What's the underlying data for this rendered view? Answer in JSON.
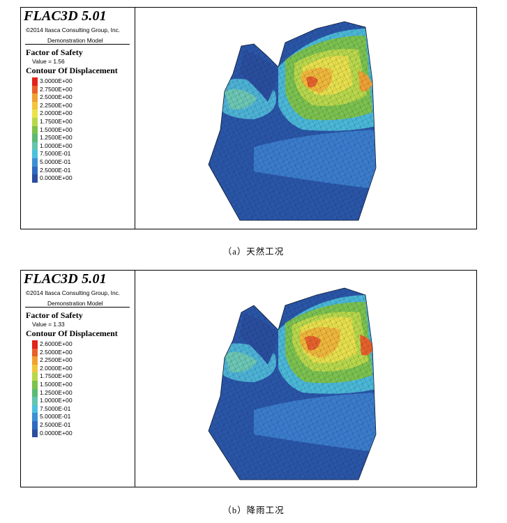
{
  "panels": [
    {
      "program": "FLAC3D 5.01",
      "copyright": "©2014 Itasca Consulting Group, Inc.",
      "model": "Demonstration Model",
      "factor_title": "Factor of Safety",
      "factor_value": "Value = 1.56",
      "contour_title": "Contour Of Displacement",
      "scale": [
        {
          "label": "3.0000E+00",
          "color": "#e2231a"
        },
        {
          "label": "2.7500E+00",
          "color": "#e8612a"
        },
        {
          "label": "2.5000E+00",
          "color": "#efa132"
        },
        {
          "label": "2.2500E+00",
          "color": "#f2c53d"
        },
        {
          "label": "2.0000E+00",
          "color": "#e9e34a"
        },
        {
          "label": "1.7500E+00",
          "color": "#b8d84a"
        },
        {
          "label": "1.5000E+00",
          "color": "#7dc24d"
        },
        {
          "label": "1.2500E+00",
          "color": "#5cba74"
        },
        {
          "label": "1.0000E+00",
          "color": "#63c5b1"
        },
        {
          "label": "7.5000E-01",
          "color": "#4dc0de"
        },
        {
          "label": "5.0000E-01",
          "color": "#3d8fd4"
        },
        {
          "label": "2.5000E-01",
          "color": "#2e6bc0"
        },
        {
          "label": "0.0000E+00",
          "color": "#2a4e9e"
        }
      ],
      "caption": "（a）天然工况"
    },
    {
      "program": "FLAC3D 5.01",
      "copyright": "©2014 Itasca Consulting Group, Inc.",
      "model": "Demonstration Model",
      "factor_title": "Factor of Safety",
      "factor_value": "Value = 1.33",
      "contour_title": "Contour Of Displacement",
      "scale": [
        {
          "label": "2.6000E+00",
          "color": "#e2231a"
        },
        {
          "label": "2.5000E+00",
          "color": "#e8612a"
        },
        {
          "label": "2.2500E+00",
          "color": "#efa132"
        },
        {
          "label": "2.0000E+00",
          "color": "#f2c53d"
        },
        {
          "label": "1.7500E+00",
          "color": "#b8d84a"
        },
        {
          "label": "1.5000E+00",
          "color": "#7dc24d"
        },
        {
          "label": "1.2500E+00",
          "color": "#5cba74"
        },
        {
          "label": "1.0000E+00",
          "color": "#63c5b1"
        },
        {
          "label": "7.5000E-01",
          "color": "#4dc0de"
        },
        {
          "label": "5.0000E-01",
          "color": "#3d8fd4"
        },
        {
          "label": "2.5000E-01",
          "color": "#2e6bc0"
        },
        {
          "label": "0.0000E+00",
          "color": "#2a4e9e"
        }
      ],
      "caption": "（b）降雨工况"
    }
  ]
}
